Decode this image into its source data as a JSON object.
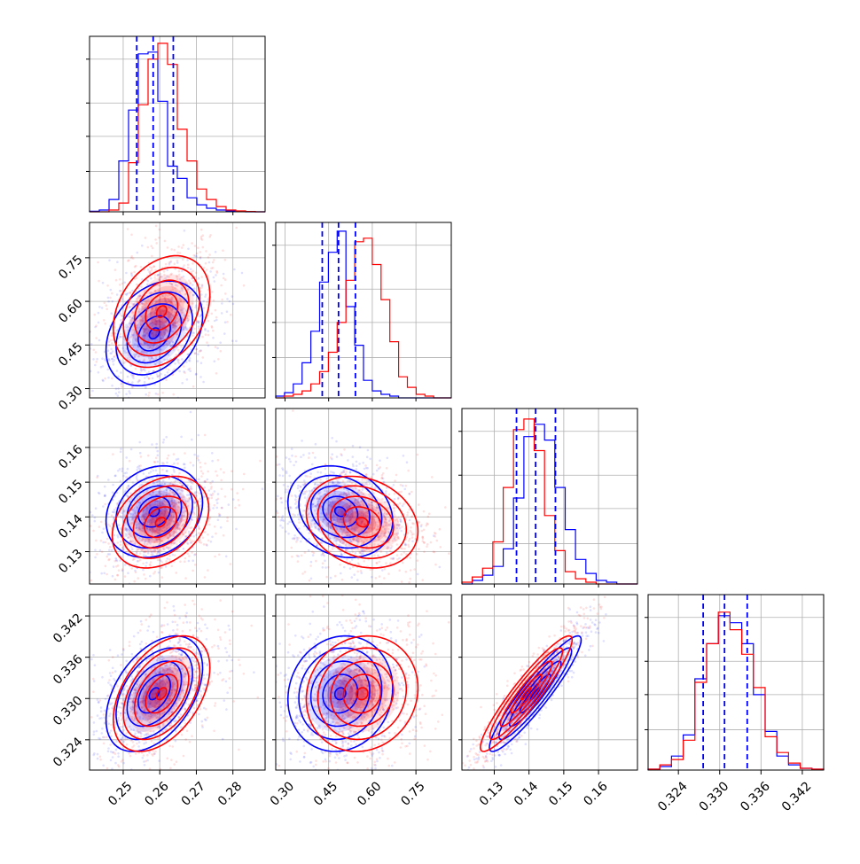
{
  "colors": {
    "blue": "#0000ff",
    "red": "#ff0000",
    "grid": "#b0b0b0",
    "frame": "#000000"
  },
  "chart_data": {
    "type": "corner",
    "grid": true,
    "n_params": 4,
    "series": [
      {
        "color": "blue"
      },
      {
        "color": "red"
      }
    ],
    "params": [
      {
        "range": [
          0.2408,
          0.2888
        ],
        "ticks": [
          0.25,
          0.26,
          0.27,
          0.28
        ],
        "tick_labels": [
          "0.25",
          "0.26",
          "0.27",
          "0.28"
        ],
        "hist": {
          "blue": [
            0.003,
            0.01,
            0.07,
            0.29,
            0.58,
            0.9,
            0.91,
            0.63,
            0.26,
            0.19,
            0.08,
            0.04,
            0.02,
            0.01,
            0.005,
            0.002,
            0.0,
            0.0
          ],
          "red": [
            0.0,
            0.0,
            0.01,
            0.05,
            0.28,
            0.61,
            0.87,
            0.96,
            0.84,
            0.47,
            0.29,
            0.13,
            0.07,
            0.03,
            0.01,
            0.005,
            0.002,
            0.0
          ]
        },
        "quantile_lines": [
          0.2537,
          0.2582,
          0.2637
        ]
      },
      {
        "range": [
          0.2681,
          0.8715
        ],
        "ticks": [
          0.3,
          0.45,
          0.6,
          0.75
        ],
        "tick_labels": [
          "0.30",
          "0.45",
          "0.60",
          "0.75"
        ],
        "hist": {
          "blue": [
            0.01,
            0.03,
            0.08,
            0.2,
            0.38,
            0.66,
            0.83,
            0.95,
            0.52,
            0.3,
            0.1,
            0.04,
            0.02,
            0.01,
            0.0,
            0.0,
            0.0,
            0.0,
            0.0,
            0.0
          ],
          "red": [
            0.0,
            0.01,
            0.02,
            0.04,
            0.08,
            0.15,
            0.26,
            0.43,
            0.67,
            0.89,
            0.91,
            0.76,
            0.56,
            0.32,
            0.12,
            0.06,
            0.02,
            0.01,
            0.0,
            0.0
          ]
        },
        "quantile_lines": [
          0.428,
          0.484,
          0.542
        ]
      },
      {
        "range": [
          0.1207,
          0.1712
        ],
        "ticks": [
          0.13,
          0.14,
          0.15,
          0.16
        ],
        "tick_labels": [
          "0.13",
          "0.14",
          "0.15",
          "0.16"
        ],
        "hist": {
          "blue": [
            0.0,
            0.02,
            0.05,
            0.1,
            0.2,
            0.49,
            0.84,
            0.91,
            0.82,
            0.55,
            0.31,
            0.14,
            0.06,
            0.02,
            0.01,
            0.0,
            0.0
          ],
          "red": [
            0.01,
            0.04,
            0.09,
            0.24,
            0.55,
            0.88,
            0.94,
            0.76,
            0.39,
            0.19,
            0.07,
            0.03,
            0.01,
            0.0,
            0.0,
            0.0,
            0.0
          ]
        },
        "quantile_lines": [
          0.1364,
          0.1419,
          0.1476
        ]
      },
      {
        "range": [
          0.3196,
          0.3451
        ],
        "ticks": [
          0.324,
          0.33,
          0.336,
          0.342
        ],
        "tick_labels": [
          "0.324",
          "0.330",
          "0.336",
          "0.342"
        ],
        "hist": {
          "blue": [
            0.005,
            0.02,
            0.08,
            0.2,
            0.52,
            0.72,
            0.88,
            0.84,
            0.72,
            0.43,
            0.22,
            0.08,
            0.03,
            0.01,
            0.005
          ],
          "red": [
            0.005,
            0.03,
            0.06,
            0.17,
            0.5,
            0.72,
            0.9,
            0.8,
            0.66,
            0.47,
            0.19,
            0.1,
            0.04,
            0.01,
            0.005
          ]
        },
        "quantile_lines": [
          0.3276,
          0.3307,
          0.334
        ]
      }
    ],
    "pair_stats": {
      "1,0": {
        "blue": {
          "mean": [
            0.2585,
            0.49
          ],
          "sd": [
            0.0055,
            0.075
          ],
          "rho": 0.32
        },
        "red": {
          "mean": [
            0.2605,
            0.565
          ],
          "sd": [
            0.0055,
            0.08
          ],
          "rho": 0.3
        }
      },
      "2,0": {
        "blue": {
          "mean": [
            0.2585,
            0.1415
          ],
          "sd": [
            0.0055,
            0.0055
          ],
          "rho": 0.2
        },
        "red": {
          "mean": [
            0.2602,
            0.1385
          ],
          "sd": [
            0.0055,
            0.0055
          ],
          "rho": 0.3
        }
      },
      "2,1": {
        "blue": {
          "mean": [
            0.49,
            0.1415
          ],
          "sd": [
            0.075,
            0.0055
          ],
          "rho": -0.2
        },
        "red": {
          "mean": [
            0.565,
            0.1385
          ],
          "sd": [
            0.08,
            0.0055
          ],
          "rho": -0.2
        }
      },
      "3,0": {
        "blue": {
          "mean": [
            0.2585,
            0.3307
          ],
          "sd": [
            0.0055,
            0.0035
          ],
          "rho": 0.45
        },
        "red": {
          "mean": [
            0.2605,
            0.3307
          ],
          "sd": [
            0.0055,
            0.0035
          ],
          "rho": 0.45
        }
      },
      "3,1": {
        "blue": {
          "mean": [
            0.49,
            0.3307
          ],
          "sd": [
            0.075,
            0.0035
          ],
          "rho": 0.1
        },
        "red": {
          "mean": [
            0.565,
            0.3307
          ],
          "sd": [
            0.08,
            0.0035
          ],
          "rho": 0.1
        }
      },
      "3,2": {
        "blue": {
          "mean": [
            0.1418,
            0.3307
          ],
          "sd": [
            0.0055,
            0.0035
          ],
          "rho": 0.93
        },
        "red": {
          "mean": [
            0.1392,
            0.3307
          ],
          "sd": [
            0.0055,
            0.0035
          ],
          "rho": 0.93
        }
      }
    }
  }
}
